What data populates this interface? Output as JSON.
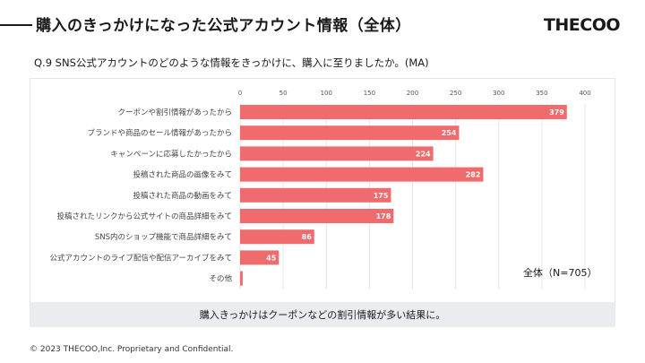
{
  "header": {
    "title": "購入のきっかけになった公式アカウント情報（全体）",
    "logo": "THECOO"
  },
  "question": "Q.9 SNS公式アカウントのどのような情報をきっかけに、購入に至りましたか。(MA)",
  "caption": "購入きっかけはクーポンなどの割引情報が多い結果に。",
  "footer": "© 2023 THECOO,Inc. Proprietary and Confidential.",
  "chart_data": {
    "type": "bar",
    "orientation": "horizontal",
    "categories": [
      "クーポンや割引情報があったから",
      "ブランドや商品のセール情報があったから",
      "キャンペーンに応募したかったから",
      "投稿された商品の画像をみて",
      "投稿された商品の動画をみて",
      "投稿されたリンクから公式サイトの商品詳細をみて",
      "SNS内のショップ機能で商品詳細をみて",
      "公式アカウントのライブ配信や配信アーカイブをみて",
      "その他"
    ],
    "values": [
      379,
      254,
      224,
      282,
      175,
      178,
      86,
      45,
      3
    ],
    "xlim": [
      0,
      400
    ],
    "ticks": [
      0,
      50,
      100,
      150,
      200,
      250,
      300,
      350,
      400
    ],
    "legend": "全体（N=705）",
    "bar_color": "#ef6b6e",
    "grid": true
  }
}
